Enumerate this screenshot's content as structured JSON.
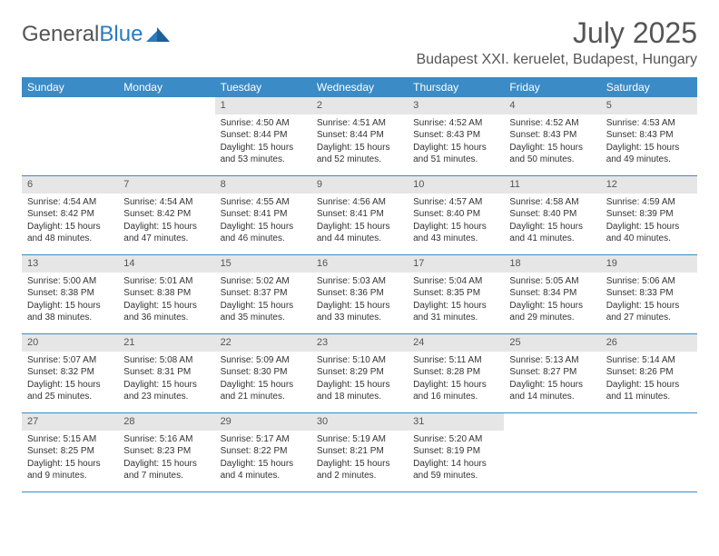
{
  "logo": {
    "text1": "General",
    "text2": "Blue"
  },
  "header": {
    "month_title": "July 2025",
    "location": "Budapest XXI. keruelet, Budapest, Hungary"
  },
  "colors": {
    "header_bg": "#3b8bc6",
    "daynum_bg": "#e6e6e6",
    "text": "#333333",
    "muted": "#555555"
  },
  "weekdays": [
    "Sunday",
    "Monday",
    "Tuesday",
    "Wednesday",
    "Thursday",
    "Friday",
    "Saturday"
  ],
  "weeks": [
    [
      {
        "day": "",
        "lines": []
      },
      {
        "day": "",
        "lines": []
      },
      {
        "day": "1",
        "lines": [
          "Sunrise: 4:50 AM",
          "Sunset: 8:44 PM",
          "Daylight: 15 hours and 53 minutes."
        ]
      },
      {
        "day": "2",
        "lines": [
          "Sunrise: 4:51 AM",
          "Sunset: 8:44 PM",
          "Daylight: 15 hours and 52 minutes."
        ]
      },
      {
        "day": "3",
        "lines": [
          "Sunrise: 4:52 AM",
          "Sunset: 8:43 PM",
          "Daylight: 15 hours and 51 minutes."
        ]
      },
      {
        "day": "4",
        "lines": [
          "Sunrise: 4:52 AM",
          "Sunset: 8:43 PM",
          "Daylight: 15 hours and 50 minutes."
        ]
      },
      {
        "day": "5",
        "lines": [
          "Sunrise: 4:53 AM",
          "Sunset: 8:43 PM",
          "Daylight: 15 hours and 49 minutes."
        ]
      }
    ],
    [
      {
        "day": "6",
        "lines": [
          "Sunrise: 4:54 AM",
          "Sunset: 8:42 PM",
          "Daylight: 15 hours and 48 minutes."
        ]
      },
      {
        "day": "7",
        "lines": [
          "Sunrise: 4:54 AM",
          "Sunset: 8:42 PM",
          "Daylight: 15 hours and 47 minutes."
        ]
      },
      {
        "day": "8",
        "lines": [
          "Sunrise: 4:55 AM",
          "Sunset: 8:41 PM",
          "Daylight: 15 hours and 46 minutes."
        ]
      },
      {
        "day": "9",
        "lines": [
          "Sunrise: 4:56 AM",
          "Sunset: 8:41 PM",
          "Daylight: 15 hours and 44 minutes."
        ]
      },
      {
        "day": "10",
        "lines": [
          "Sunrise: 4:57 AM",
          "Sunset: 8:40 PM",
          "Daylight: 15 hours and 43 minutes."
        ]
      },
      {
        "day": "11",
        "lines": [
          "Sunrise: 4:58 AM",
          "Sunset: 8:40 PM",
          "Daylight: 15 hours and 41 minutes."
        ]
      },
      {
        "day": "12",
        "lines": [
          "Sunrise: 4:59 AM",
          "Sunset: 8:39 PM",
          "Daylight: 15 hours and 40 minutes."
        ]
      }
    ],
    [
      {
        "day": "13",
        "lines": [
          "Sunrise: 5:00 AM",
          "Sunset: 8:38 PM",
          "Daylight: 15 hours and 38 minutes."
        ]
      },
      {
        "day": "14",
        "lines": [
          "Sunrise: 5:01 AM",
          "Sunset: 8:38 PM",
          "Daylight: 15 hours and 36 minutes."
        ]
      },
      {
        "day": "15",
        "lines": [
          "Sunrise: 5:02 AM",
          "Sunset: 8:37 PM",
          "Daylight: 15 hours and 35 minutes."
        ]
      },
      {
        "day": "16",
        "lines": [
          "Sunrise: 5:03 AM",
          "Sunset: 8:36 PM",
          "Daylight: 15 hours and 33 minutes."
        ]
      },
      {
        "day": "17",
        "lines": [
          "Sunrise: 5:04 AM",
          "Sunset: 8:35 PM",
          "Daylight: 15 hours and 31 minutes."
        ]
      },
      {
        "day": "18",
        "lines": [
          "Sunrise: 5:05 AM",
          "Sunset: 8:34 PM",
          "Daylight: 15 hours and 29 minutes."
        ]
      },
      {
        "day": "19",
        "lines": [
          "Sunrise: 5:06 AM",
          "Sunset: 8:33 PM",
          "Daylight: 15 hours and 27 minutes."
        ]
      }
    ],
    [
      {
        "day": "20",
        "lines": [
          "Sunrise: 5:07 AM",
          "Sunset: 8:32 PM",
          "Daylight: 15 hours and 25 minutes."
        ]
      },
      {
        "day": "21",
        "lines": [
          "Sunrise: 5:08 AM",
          "Sunset: 8:31 PM",
          "Daylight: 15 hours and 23 minutes."
        ]
      },
      {
        "day": "22",
        "lines": [
          "Sunrise: 5:09 AM",
          "Sunset: 8:30 PM",
          "Daylight: 15 hours and 21 minutes."
        ]
      },
      {
        "day": "23",
        "lines": [
          "Sunrise: 5:10 AM",
          "Sunset: 8:29 PM",
          "Daylight: 15 hours and 18 minutes."
        ]
      },
      {
        "day": "24",
        "lines": [
          "Sunrise: 5:11 AM",
          "Sunset: 8:28 PM",
          "Daylight: 15 hours and 16 minutes."
        ]
      },
      {
        "day": "25",
        "lines": [
          "Sunrise: 5:13 AM",
          "Sunset: 8:27 PM",
          "Daylight: 15 hours and 14 minutes."
        ]
      },
      {
        "day": "26",
        "lines": [
          "Sunrise: 5:14 AM",
          "Sunset: 8:26 PM",
          "Daylight: 15 hours and 11 minutes."
        ]
      }
    ],
    [
      {
        "day": "27",
        "lines": [
          "Sunrise: 5:15 AM",
          "Sunset: 8:25 PM",
          "Daylight: 15 hours and 9 minutes."
        ]
      },
      {
        "day": "28",
        "lines": [
          "Sunrise: 5:16 AM",
          "Sunset: 8:23 PM",
          "Daylight: 15 hours and 7 minutes."
        ]
      },
      {
        "day": "29",
        "lines": [
          "Sunrise: 5:17 AM",
          "Sunset: 8:22 PM",
          "Daylight: 15 hours and 4 minutes."
        ]
      },
      {
        "day": "30",
        "lines": [
          "Sunrise: 5:19 AM",
          "Sunset: 8:21 PM",
          "Daylight: 15 hours and 2 minutes."
        ]
      },
      {
        "day": "31",
        "lines": [
          "Sunrise: 5:20 AM",
          "Sunset: 8:19 PM",
          "Daylight: 14 hours and 59 minutes."
        ]
      },
      {
        "day": "",
        "lines": []
      },
      {
        "day": "",
        "lines": []
      }
    ]
  ]
}
